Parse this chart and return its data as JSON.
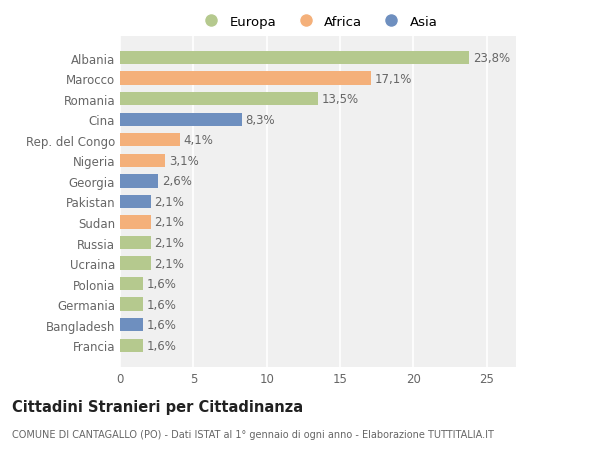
{
  "categories": [
    "Albania",
    "Marocco",
    "Romania",
    "Cina",
    "Rep. del Congo",
    "Nigeria",
    "Georgia",
    "Pakistan",
    "Sudan",
    "Russia",
    "Ucraina",
    "Polonia",
    "Germania",
    "Bangladesh",
    "Francia"
  ],
  "values": [
    23.8,
    17.1,
    13.5,
    8.3,
    4.1,
    3.1,
    2.6,
    2.1,
    2.1,
    2.1,
    2.1,
    1.6,
    1.6,
    1.6,
    1.6
  ],
  "labels": [
    "23,8%",
    "17,1%",
    "13,5%",
    "8,3%",
    "4,1%",
    "3,1%",
    "2,6%",
    "2,1%",
    "2,1%",
    "2,1%",
    "2,1%",
    "1,6%",
    "1,6%",
    "1,6%",
    "1,6%"
  ],
  "continents": [
    "Europa",
    "Africa",
    "Europa",
    "Asia",
    "Africa",
    "Africa",
    "Asia",
    "Asia",
    "Africa",
    "Europa",
    "Europa",
    "Europa",
    "Europa",
    "Asia",
    "Europa"
  ],
  "colors": {
    "Europa": "#b5c98e",
    "Africa": "#f4b07a",
    "Asia": "#6e8fbf"
  },
  "xlim": [
    0,
    27
  ],
  "xticks": [
    0,
    5,
    10,
    15,
    20,
    25
  ],
  "title": "Cittadini Stranieri per Cittadinanza",
  "subtitle": "COMUNE DI CANTAGALLO (PO) - Dati ISTAT al 1° gennaio di ogni anno - Elaborazione TUTTITALIA.IT",
  "background_color": "#ffffff",
  "plot_background": "#f0f0f0",
  "grid_color": "#ffffff",
  "bar_height": 0.65,
  "label_fontsize": 8.5,
  "tick_fontsize": 8.5,
  "legend_fontsize": 9.5
}
